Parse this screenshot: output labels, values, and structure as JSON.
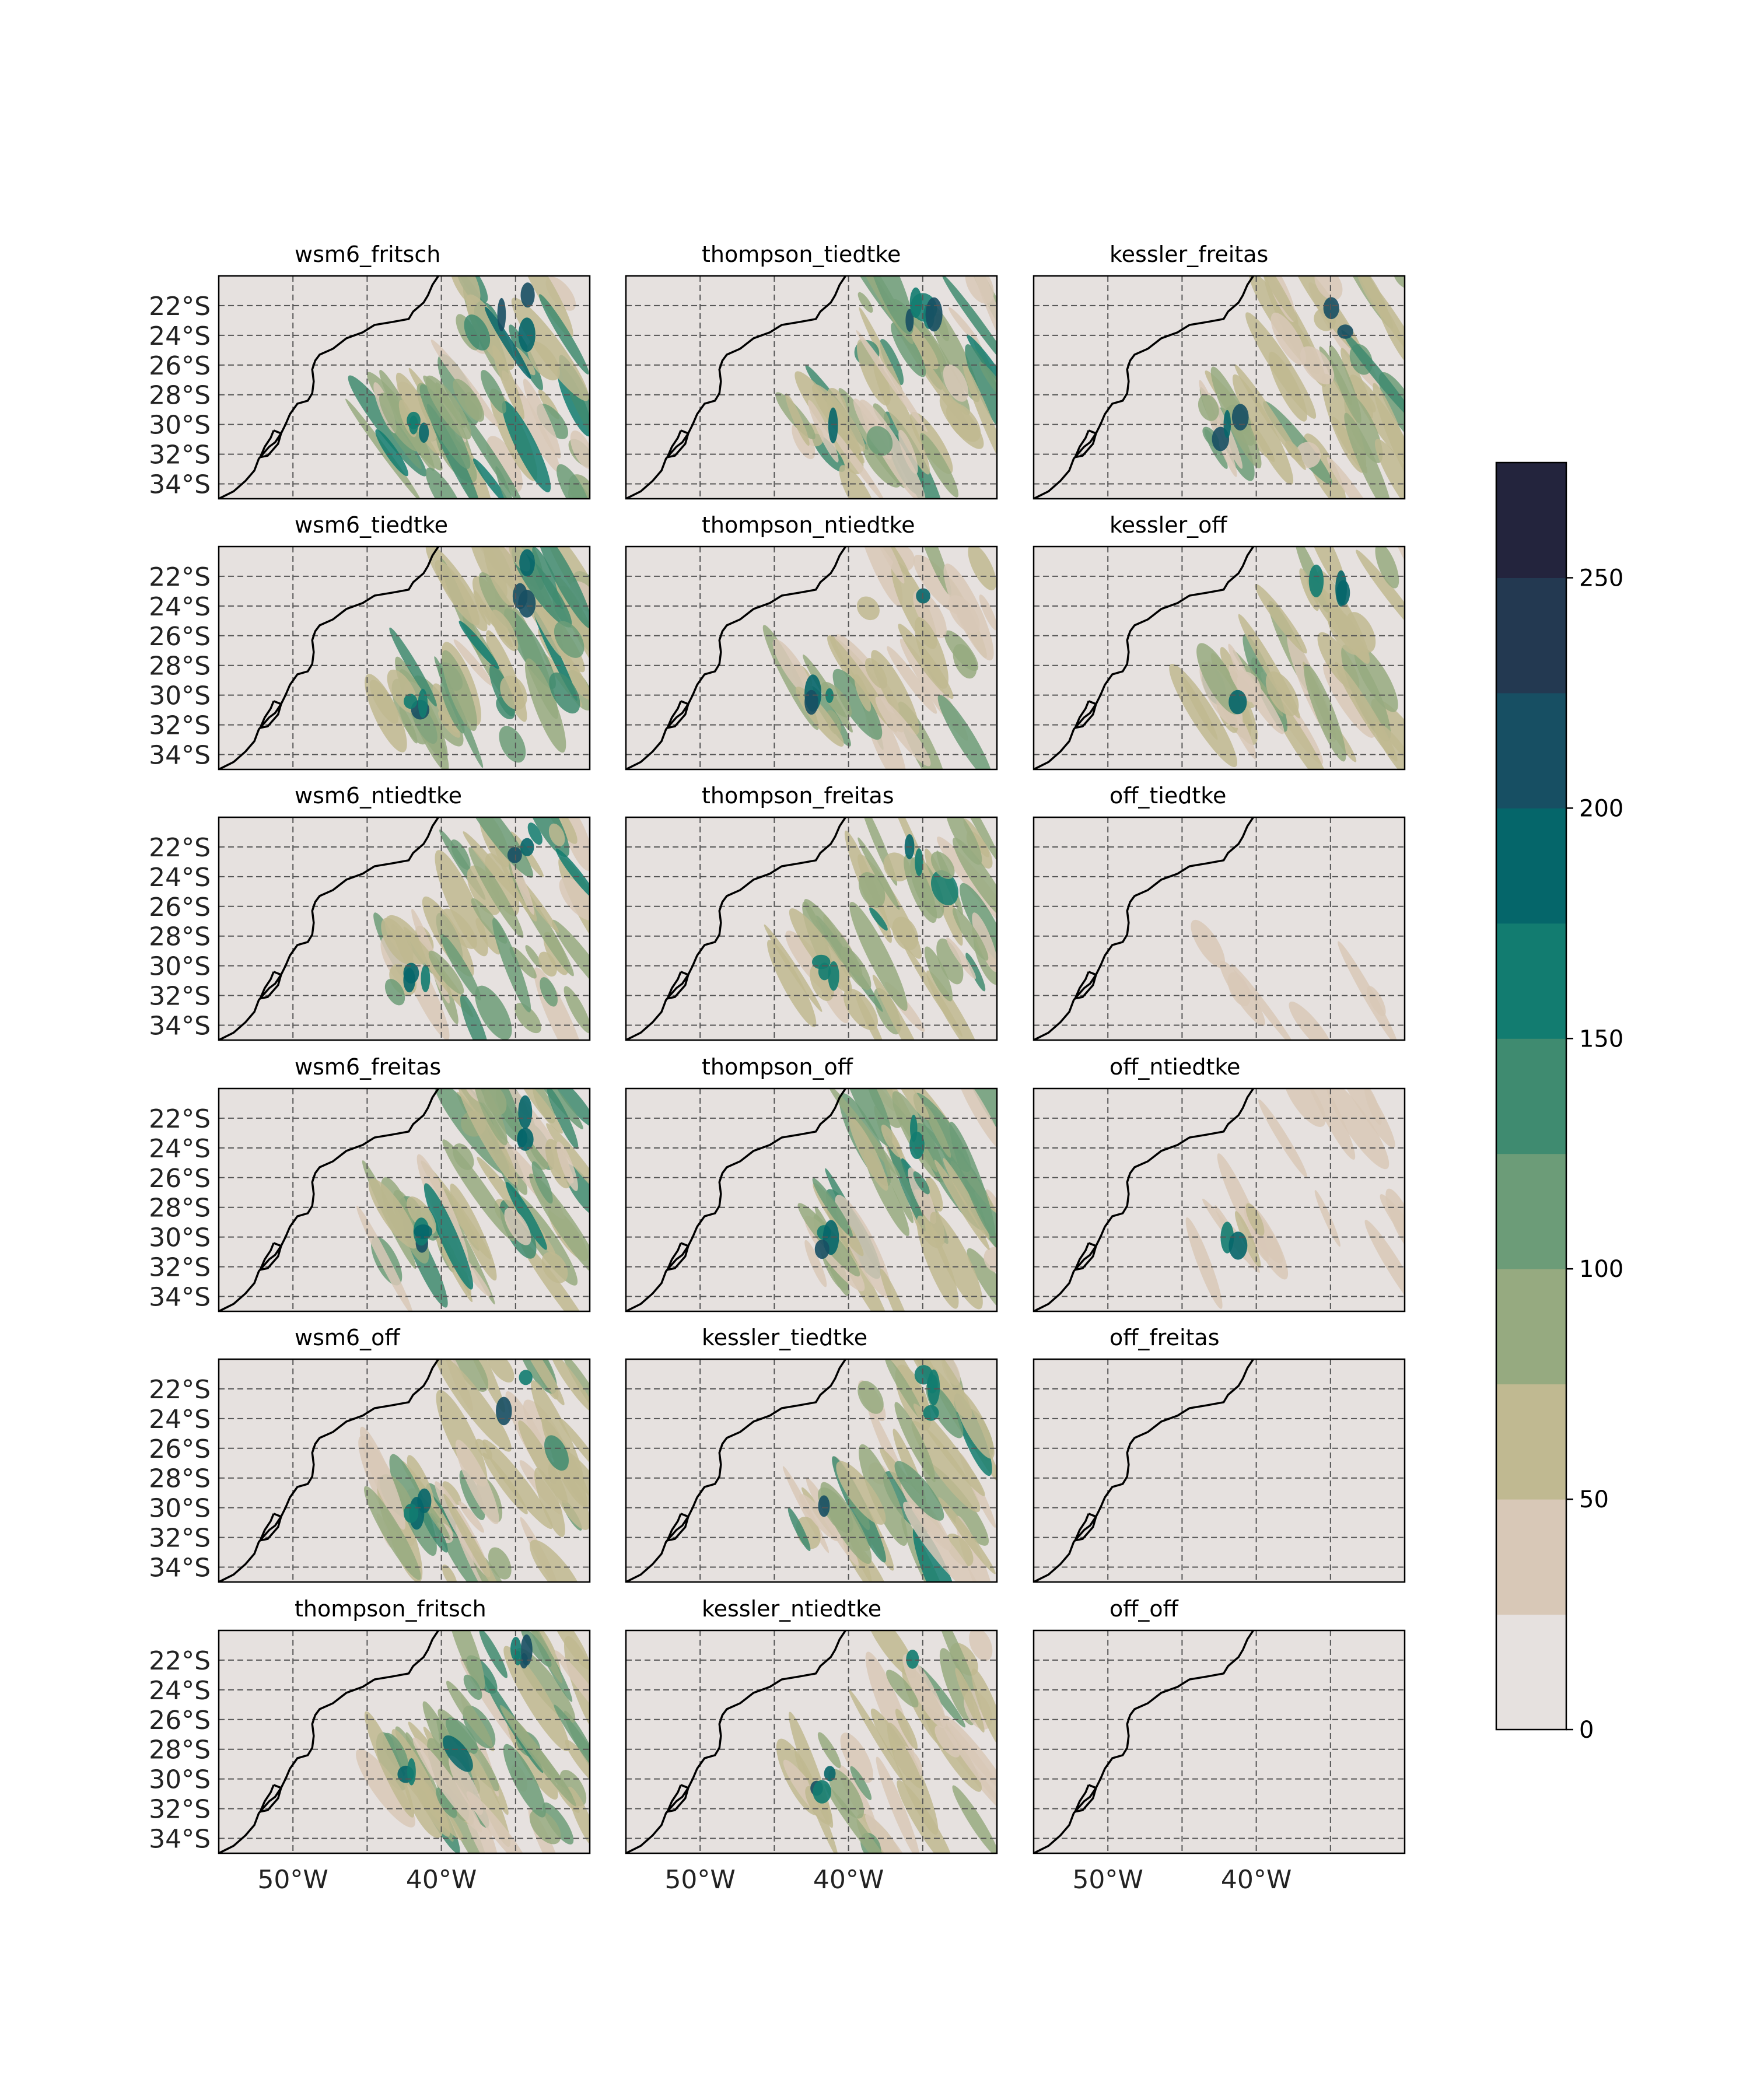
{
  "panels": [
    {
      "title": "wsm6_fritsch"
    },
    {
      "title": "thompson_tiedtke"
    },
    {
      "title": "kessler_freitas"
    },
    {
      "title": "wsm6_tiedtke"
    },
    {
      "title": "thompson_ntiedtke"
    },
    {
      "title": "kessler_off"
    },
    {
      "title": "wsm6_ntiedtke"
    },
    {
      "title": "thompson_freitas"
    },
    {
      "title": "off_tiedtke"
    },
    {
      "title": "wsm6_freitas"
    },
    {
      "title": "thompson_off"
    },
    {
      "title": "off_ntiedtke"
    },
    {
      "title": "wsm6_off"
    },
    {
      "title": "kessler_tiedtke"
    },
    {
      "title": "off_freitas"
    },
    {
      "title": "thompson_fritsch"
    },
    {
      "title": "kessler_ntiedtke"
    },
    {
      "title": "off_off"
    }
  ],
  "lat_ticks": [
    "22°S",
    "24°S",
    "26°S",
    "28°S",
    "30°S",
    "32°S",
    "34°S"
  ],
  "lon_ticks": [
    "50°W",
    "40°W"
  ],
  "colorbar": {
    "ticks": [
      "0",
      "50",
      "100",
      "150",
      "200",
      "250"
    ],
    "colors": [
      "#e6e1df",
      "#d8c8b7",
      "#c0b991",
      "#96aa80",
      "#6c9c78",
      "#3f8b70",
      "#127c70",
      "#05666a",
      "#174f63",
      "#233951",
      "#23243d"
    ]
  },
  "colors": {
    "background": "#e6e1df",
    "grid": "#555555",
    "coast": "#000000"
  }
}
